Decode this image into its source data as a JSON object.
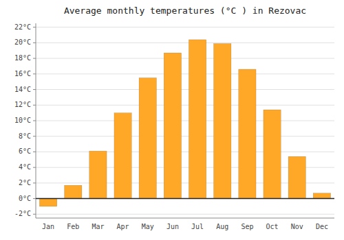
{
  "chart_data": {
    "type": "bar",
    "title": "Average monthly temperatures (°C ) in Rezovac",
    "categories": [
      "Jan",
      "Feb",
      "Mar",
      "Apr",
      "May",
      "Jun",
      "Jul",
      "Aug",
      "Sep",
      "Oct",
      "Nov",
      "Dec"
    ],
    "values": [
      -1.0,
      1.7,
      6.1,
      11.0,
      15.5,
      18.7,
      20.4,
      19.9,
      16.6,
      11.4,
      5.4,
      0.7
    ],
    "color": "#FFA726",
    "ylim": [
      -2.5,
      22.5
    ],
    "yticks": [
      {
        "value": -2,
        "label": "-2°C"
      },
      {
        "value": 0,
        "label": "0°C"
      },
      {
        "value": 2,
        "label": "2°C"
      },
      {
        "value": 4,
        "label": "4°C"
      },
      {
        "value": 6,
        "label": "6°C"
      },
      {
        "value": 8,
        "label": "8°C"
      },
      {
        "value": 10,
        "label": "10°C"
      },
      {
        "value": 12,
        "label": "12°C"
      },
      {
        "value": 14,
        "label": "14°C"
      },
      {
        "value": 16,
        "label": "16°C"
      },
      {
        "value": 18,
        "label": "18°C"
      },
      {
        "value": 20,
        "label": "20°C"
      },
      {
        "value": 22,
        "label": "22°C"
      }
    ],
    "grid": true
  }
}
